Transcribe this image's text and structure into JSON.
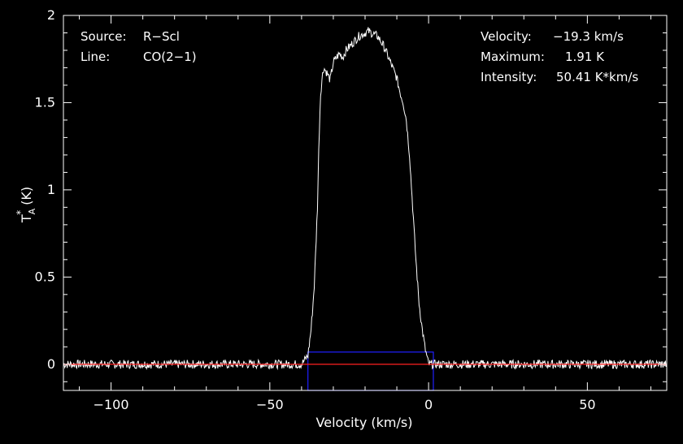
{
  "chart_data": {
    "type": "line",
    "xlabel": "Velocity (km/s)",
    "ylabel": {
      "base": "T",
      "sup": "*",
      "sub": "A",
      "unit": "(K)"
    },
    "xlim": [
      -115,
      75
    ],
    "ylim": [
      -0.15,
      2.0
    ],
    "x_ticks": [
      -100,
      -50,
      0,
      50
    ],
    "x_tick_labels": [
      "−100",
      "−50",
      "0",
      "50"
    ],
    "y_ticks": [
      0,
      0.5,
      1,
      1.5,
      2
    ],
    "y_tick_labels": [
      "0",
      "0.5",
      "1",
      "1.5",
      "2"
    ],
    "grid": false,
    "annotations": {
      "left": [
        {
          "key": "Source:",
          "value": "R−Scl"
        },
        {
          "key": "Line:",
          "value": "CO(2−1)"
        }
      ],
      "right": [
        {
          "key": "Velocity:",
          "value": "−19.3 km/s"
        },
        {
          "key": "Maximum:",
          "value": "1.91 K"
        },
        {
          "key": "Intensity:",
          "value": "50.41 K*km/s"
        }
      ]
    },
    "series": [
      {
        "color": "#ffffff",
        "x": [
          -115,
          -40,
          -38,
          -37,
          -36,
          -35,
          -34.5,
          -34,
          -33.5,
          -33,
          -32,
          -31,
          -30,
          -29,
          -28,
          -27,
          -26,
          -25,
          -24,
          -22,
          -20,
          -19,
          -18,
          -16,
          -14,
          -12,
          -10,
          -9,
          -8,
          -7,
          -6,
          -5,
          -4,
          -3,
          -2,
          -1,
          0,
          2,
          75
        ],
        "y": [
          0,
          0,
          0.05,
          0.2,
          0.45,
          0.9,
          1.3,
          1.55,
          1.65,
          1.7,
          1.67,
          1.63,
          1.73,
          1.76,
          1.78,
          1.76,
          1.8,
          1.82,
          1.84,
          1.88,
          1.9,
          1.91,
          1.9,
          1.88,
          1.82,
          1.73,
          1.64,
          1.56,
          1.5,
          1.4,
          1.2,
          0.9,
          0.6,
          0.35,
          0.2,
          0.08,
          0,
          0,
          0
        ],
        "noise": 0.025
      },
      {
        "color": "#ff2020",
        "x": [
          -115,
          75
        ],
        "y": [
          0,
          0
        ]
      }
    ],
    "window": {
      "color": "#2020ff",
      "x": [
        -38,
        1.5
      ],
      "y": [
        -0.15,
        0.07
      ]
    }
  }
}
